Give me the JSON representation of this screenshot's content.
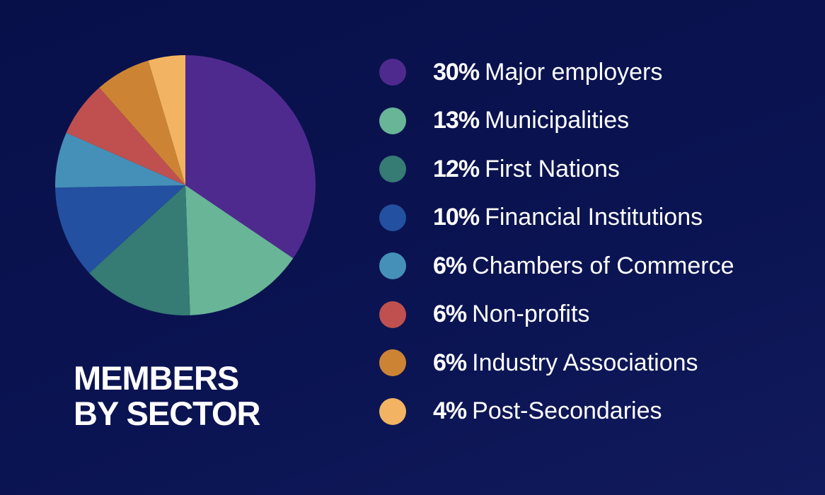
{
  "chart_data": {
    "type": "pie",
    "title": "MEMBERS BY SECTOR",
    "categories": [
      "Major employers",
      "Municipalities",
      "First Nations",
      "Financial Institutions",
      "Chambers of Commerce",
      "Non-profits",
      "Industry Associations",
      "Post-Secondaries"
    ],
    "values": [
      30,
      13,
      12,
      10,
      6,
      6,
      6,
      4
    ],
    "value_labels": [
      "30%",
      "13%",
      "12%",
      "10%",
      "6%",
      "6%",
      "6%",
      "4%"
    ],
    "colors": [
      "#4f2a8e",
      "#68b597",
      "#367b74",
      "#2350a0",
      "#4590b8",
      "#c0504f",
      "#cc8434",
      "#f2b462"
    ]
  }
}
